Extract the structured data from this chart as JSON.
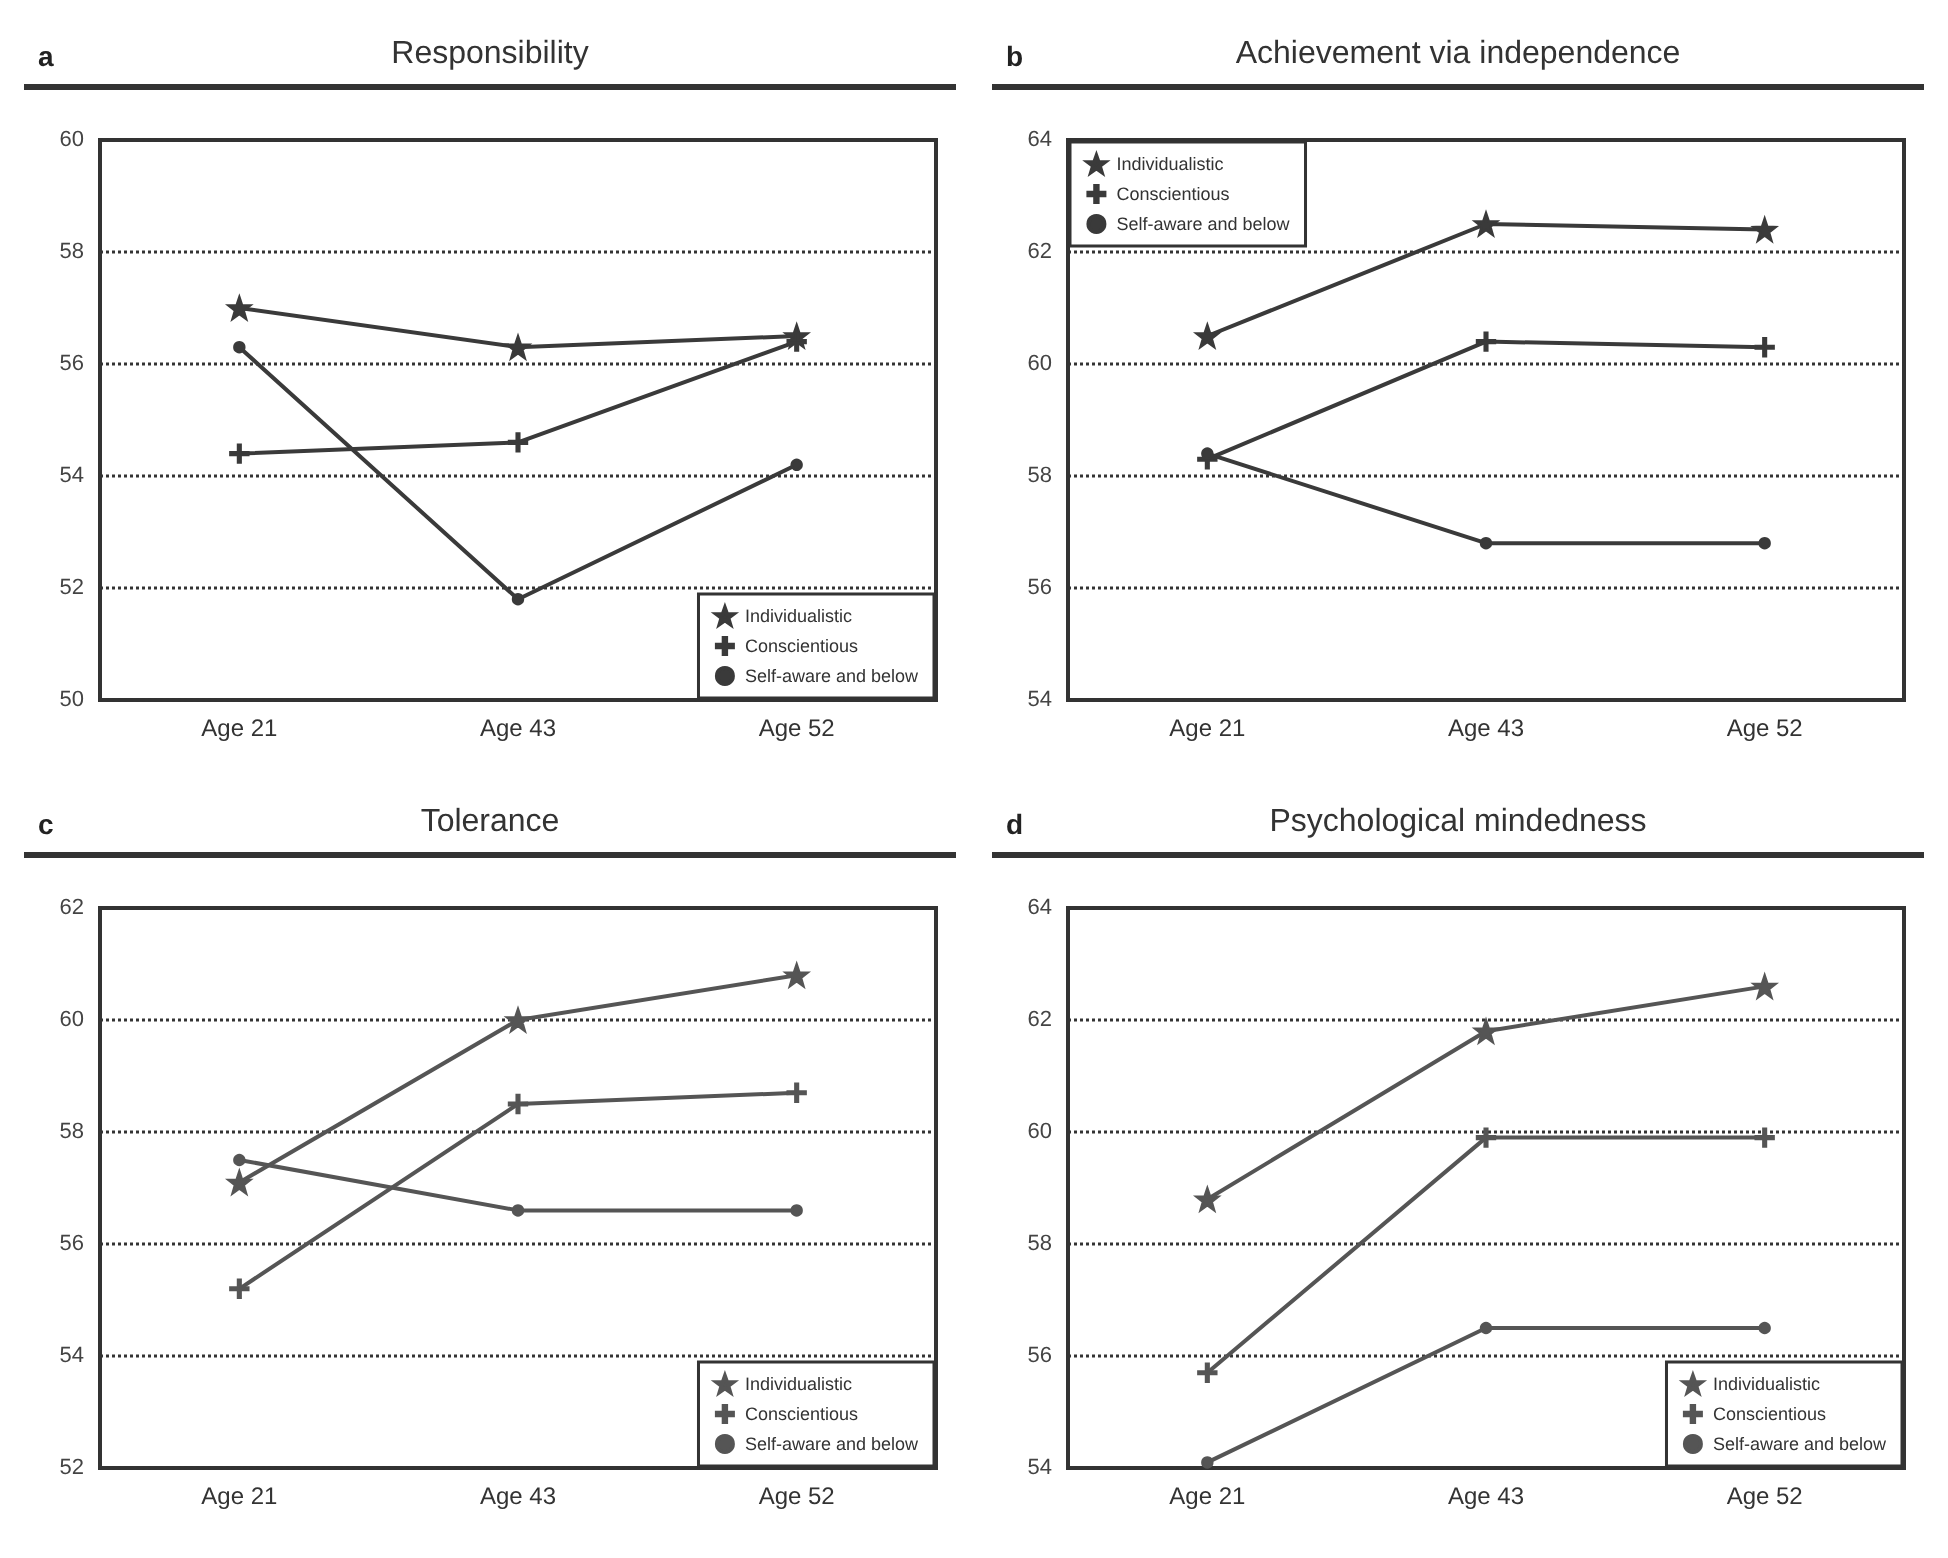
{
  "chart_data": [
    {
      "type": "line",
      "title": "Responsibility",
      "annotations": [
        "a"
      ],
      "categories": [
        "Age 21",
        "Age 43",
        "Age 52"
      ],
      "ylim": [
        50,
        60
      ],
      "yticks": [
        50,
        52,
        54,
        56,
        58,
        60
      ],
      "grid": "y",
      "legend": "bottom right",
      "series": [
        {
          "name": "Individualistic",
          "color": "#3a3a3a",
          "marker": "star",
          "values": [
            57.0,
            56.3,
            56.5
          ]
        },
        {
          "name": "Conscientious",
          "color": "#3a3a3a",
          "marker": "cross",
          "values": [
            54.4,
            54.6,
            56.4
          ]
        },
        {
          "name": "Self-aware and below",
          "color": "#3a3a3a",
          "marker": "circle",
          "values": [
            56.3,
            51.8,
            54.2
          ]
        }
      ]
    },
    {
      "type": "line",
      "title": "Achievement via independence",
      "annotations": [
        "b"
      ],
      "categories": [
        "Age 21",
        "Age 43",
        "Age 52"
      ],
      "ylim": [
        54,
        64
      ],
      "yticks": [
        54,
        56,
        58,
        60,
        62,
        64
      ],
      "grid": "y",
      "legend": "top left",
      "series": [
        {
          "name": "Individualistic",
          "color": "#3a3a3a",
          "marker": "star",
          "values": [
            60.5,
            62.5,
            62.4
          ]
        },
        {
          "name": "Conscientious",
          "color": "#3a3a3a",
          "marker": "cross",
          "values": [
            58.3,
            60.4,
            60.3
          ]
        },
        {
          "name": "Self-aware and below",
          "color": "#3a3a3a",
          "marker": "circle",
          "values": [
            58.4,
            56.8,
            56.8
          ]
        }
      ]
    },
    {
      "type": "line",
      "title": "Tolerance",
      "annotations": [
        "c"
      ],
      "categories": [
        "Age 21",
        "Age 43",
        "Age 52"
      ],
      "ylim": [
        52,
        62
      ],
      "yticks": [
        52,
        54,
        56,
        58,
        60,
        62
      ],
      "grid": "y",
      "legend": "bottom right",
      "series": [
        {
          "name": "Individualistic",
          "color": "#555555",
          "marker": "star",
          "values": [
            57.1,
            60.0,
            60.8
          ]
        },
        {
          "name": "Conscientious",
          "color": "#555555",
          "marker": "cross",
          "values": [
            55.2,
            58.5,
            58.7
          ]
        },
        {
          "name": "Self-aware and below",
          "color": "#555555",
          "marker": "circle",
          "values": [
            57.5,
            56.6,
            56.6
          ]
        }
      ]
    },
    {
      "type": "line",
      "title": "Psychological mindedness",
      "annotations": [
        "d"
      ],
      "categories": [
        "Age 21",
        "Age 43",
        "Age 52"
      ],
      "ylim": [
        54,
        64
      ],
      "yticks": [
        54,
        56,
        58,
        60,
        62,
        64
      ],
      "grid": "y",
      "legend": "bottom right",
      "series": [
        {
          "name": "Individualistic",
          "color": "#555555",
          "marker": "star",
          "values": [
            58.8,
            61.8,
            62.6
          ]
        },
        {
          "name": "Conscientious",
          "color": "#555555",
          "marker": "cross",
          "values": [
            55.7,
            59.9,
            59.9
          ]
        },
        {
          "name": "Self-aware and below",
          "color": "#555555",
          "marker": "circle",
          "values": [
            54.1,
            56.5,
            56.5
          ]
        }
      ]
    }
  ]
}
